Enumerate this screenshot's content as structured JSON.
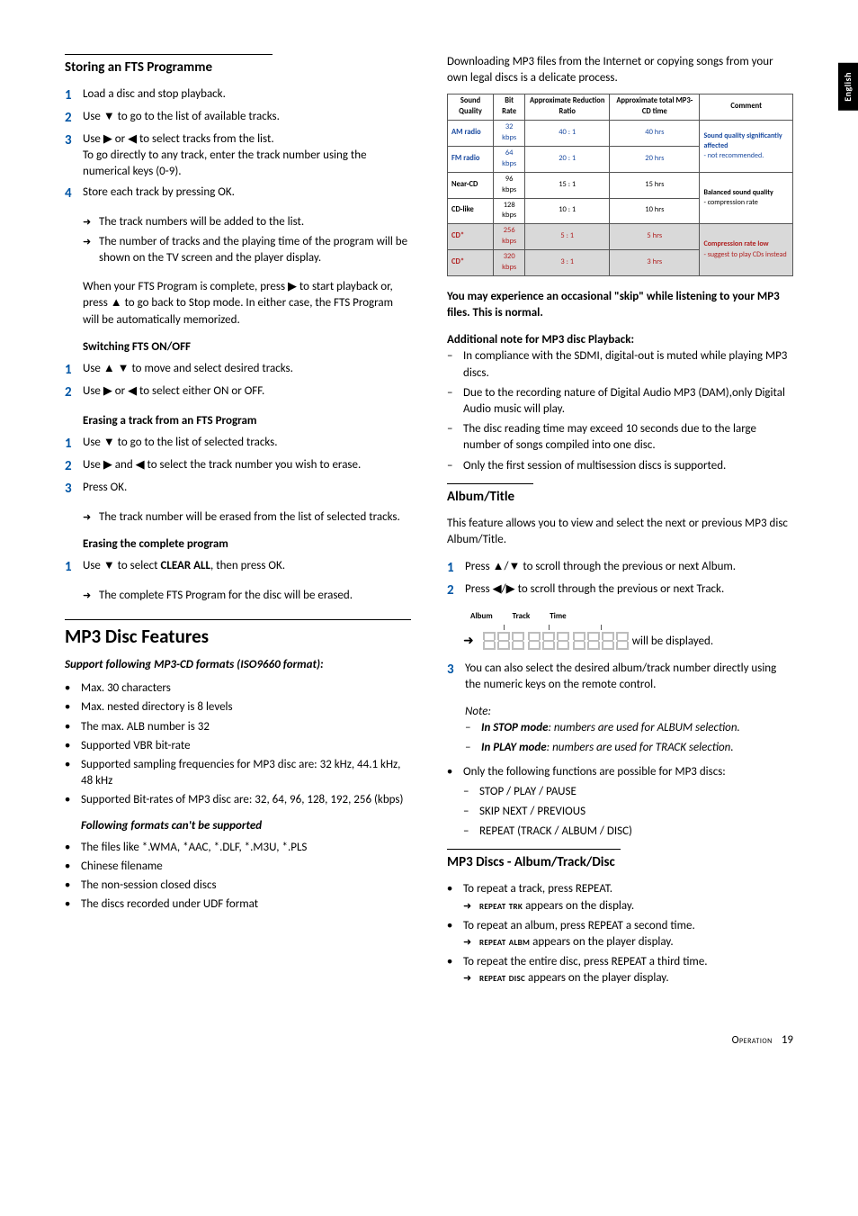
{
  "sideTab": "English",
  "left": {
    "sec1": {
      "title": "Storing an FTS Programme",
      "steps": [
        {
          "t": "Load a disc and stop playback."
        },
        {
          "t": "Use ▼ to go to the list of available tracks."
        },
        {
          "t": "Use ▶ or ◀ to select tracks from the list.",
          "extra": "To go directly to any track, enter the track number using the numerical keys (0-9)."
        },
        {
          "t": "Store each track by pressing OK."
        }
      ],
      "arrows1": [
        "The track numbers will be added to the list.",
        "The number of tracks and the playing time of the program will be shown on the TV screen and the player display."
      ],
      "para": "When your FTS Program is complete, press ▶ to start playback or, press ▲ to go back to Stop mode. In either case, the FTS Program will be automatically memorized."
    },
    "sec2": {
      "title": "Switching FTS ON/OFF",
      "steps": [
        {
          "t": "Use ▲ ▼ to move and select desired tracks."
        },
        {
          "t": "Use ▶ or ◀ to select either ON or OFF."
        }
      ]
    },
    "sec3": {
      "title": "Erasing a track from an FTS Program",
      "steps": [
        {
          "t": "Use ▼ to go to the list of selected tracks."
        },
        {
          "t": "Use ▶ and ◀ to select the track number you wish to erase."
        },
        {
          "t": "Press OK."
        }
      ],
      "arrow": "The track number will be erased from the list of selected tracks."
    },
    "sec4": {
      "title": "Erasing the complete program",
      "step_pre": "Use ▼ to select ",
      "step_bold": "CLEAR ALL",
      "step_post": ", then press OK.",
      "arrow": "The complete FTS Program for the disc will be erased."
    },
    "sec5": {
      "title": "MP3 Disc Features",
      "subtitle": "Support following MP3-CD formats (ISO9660 format):",
      "bullets": [
        "Max. 30 characters",
        "Max. nested directory is 8 levels",
        "The max. ALB number is 32",
        "Supported VBR bit-rate",
        "Supported sampling frequencies for MP3 disc are: 32 kHz, 44.1 kHz, 48 kHz",
        "Supported Bit-rates of MP3 disc are: 32, 64, 96, 128, 192, 256 (kbps)"
      ],
      "subtitle2": "Following formats can't be supported",
      "bullets2": [
        "The files like *.WMA, *AAC, *.DLF, *.M3U, *.PLS",
        "Chinese filename",
        "The non-session closed discs",
        "The discs recorded under UDF format"
      ]
    }
  },
  "right": {
    "intro": "Downloading MP3 files from the Internet or copying songs from your own legal discs is a delicate process.",
    "table": {
      "headers": [
        "Sound Quality",
        "Bit Rate",
        "Approximate Reduction Ratio",
        "Approximate total MP3-CD time",
        "Comment"
      ],
      "rows": [
        {
          "cells": [
            "AM radio",
            "32 kbps",
            "40 : 1",
            "40 hrs"
          ],
          "cls": "row-blue",
          "comment": "Sound quality significantly affected - not recommended.",
          "commentCls": "row-blue",
          "span": 2
        },
        {
          "cells": [
            "FM radio",
            "64 kbps",
            "20 : 1",
            "20 hrs"
          ],
          "cls": "row-blue"
        },
        {
          "cells": [
            "Near-CD",
            "96 kbps",
            "15 : 1",
            "15 hrs"
          ],
          "cls": "",
          "comment": "Balanced sound quality - compression rate",
          "commentCls": "",
          "span": 2
        },
        {
          "cells": [
            "CD-like",
            "128 kbps",
            "10 : 1",
            "10 hrs"
          ],
          "cls": ""
        },
        {
          "cells": [
            "CD*",
            "256 kbps",
            "5 : 1",
            "5 hrs"
          ],
          "cls": "row-gray row-red",
          "comment": "Compression rate low - suggest to play CDs instead",
          "commentCls": "row-red",
          "span": 2
        },
        {
          "cells": [
            "CD*",
            "320 kbps",
            "3 : 1",
            "3 hrs"
          ],
          "cls": "row-gray row-red"
        }
      ]
    },
    "skipNote": "You may experience an occasional \"skip\" while listening to your MP3 files. This is normal.",
    "addNoteTitle": "Additional note for MP3 disc Playback:",
    "addNotes": [
      "In compliance with the SDMI, digital-out is muted while playing MP3 discs.",
      "Due to the recording nature of Digital Audio MP3 (DAM),only Digital Audio music will play.",
      "The disc reading time may exceed 10 seconds due to the large number of songs compiled into one disc.",
      "Only the first session of multisession discs is supported."
    ],
    "album": {
      "title": "Album/Title",
      "intro": "This feature allows you to view and select the next or previous MP3 disc Album/Title.",
      "steps": [
        {
          "t": "Press ▲/▼ to scroll through the previous or next Album."
        },
        {
          "t": "Press ◀/▶ to scroll through the previous or next Track."
        }
      ],
      "labels": [
        "Album",
        "Track",
        "Time"
      ],
      "displayTail": " will be displayed.",
      "step3": "You can also select the desired album/track number directly using the numeric keys on the remote control.",
      "noteTitle": "Note:",
      "notes": [
        {
          "b": "In STOP mode",
          "r": ": numbers are used for ALBUM selection."
        },
        {
          "b": "In PLAY mode",
          "r": ": numbers are used for TRACK selection."
        }
      ],
      "only": "Only the following functions are possible for MP3 discs:",
      "onlyItems": [
        "STOP / PLAY / PAUSE",
        "SKIP NEXT / PREVIOUS",
        "REPEAT (TRACK / ALBUM / DISC)"
      ]
    },
    "mp3discs": {
      "title": "MP3 Discs - Album/Track/Disc",
      "items": [
        {
          "t": "To repeat a track, press REPEAT.",
          "sc": "repeat trk",
          "tail": " appears on the display."
        },
        {
          "t": "To repeat an album, press REPEAT a second time.",
          "sc": "repeat albm",
          "tail": " appears on the player display."
        },
        {
          "t": "To repeat the entire disc, press REPEAT a third time.",
          "sc": "repeat disc",
          "tail": " appears on the player display."
        }
      ]
    }
  },
  "footer": {
    "label": "Operation",
    "page": "19"
  }
}
